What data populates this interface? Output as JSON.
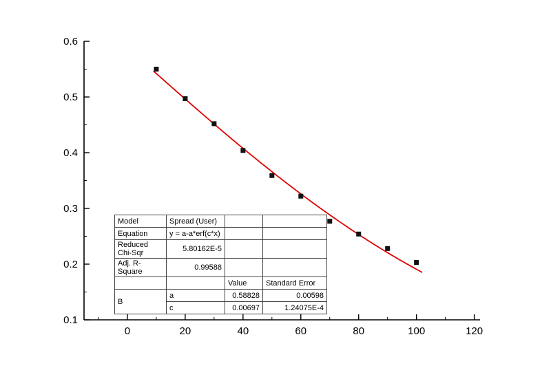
{
  "page": {
    "background_color": "#ffffff"
  },
  "chart_data": {
    "type": "scatter",
    "title": "",
    "xlabel": "",
    "ylabel": "",
    "x": [
      10,
      20,
      30,
      40,
      50,
      60,
      70,
      80,
      90,
      100
    ],
    "y": [
      0.55,
      0.497,
      0.452,
      0.404,
      0.359,
      0.322,
      0.277,
      0.254,
      0.228,
      0.203
    ],
    "series_name": "B",
    "fit": {
      "equation": "y = a-a*erf(c*x)",
      "a": 0.58828,
      "c": 0.00697,
      "x_range": [
        9,
        102
      ],
      "color": "#dd0000"
    },
    "xlim": [
      -15,
      122
    ],
    "ylim": [
      0.1,
      0.6
    ],
    "x_ticks": [
      0,
      20,
      40,
      60,
      80,
      100,
      120
    ],
    "y_ticks": [
      0.1,
      0.2,
      0.3,
      0.4,
      0.5,
      0.6
    ],
    "x_minor_step": 10,
    "y_minor_step": 0.05,
    "marker": {
      "shape": "square",
      "color": "#111111",
      "size": 7
    },
    "axis_color": "#000000",
    "grid": false,
    "legend_position": "none"
  },
  "fit_table": {
    "rows": [
      {
        "label": "Model",
        "value": "Spread (User)"
      },
      {
        "label": "Equation",
        "value": "y = a-a*erf(c*x)"
      },
      {
        "label": "Reduced Chi-Sqr",
        "value": "5.80162E-5"
      },
      {
        "label": "Adj. R-Square",
        "value": "0.99588"
      }
    ],
    "param_header": {
      "value_label": "Value",
      "std_error_label": "Standard Error"
    },
    "group_label": "B",
    "params": [
      {
        "name": "a",
        "value": "0.58828",
        "std_error": "0.00598"
      },
      {
        "name": "c",
        "value": "0.00697",
        "std_error": "1.24075E-4"
      }
    ]
  }
}
